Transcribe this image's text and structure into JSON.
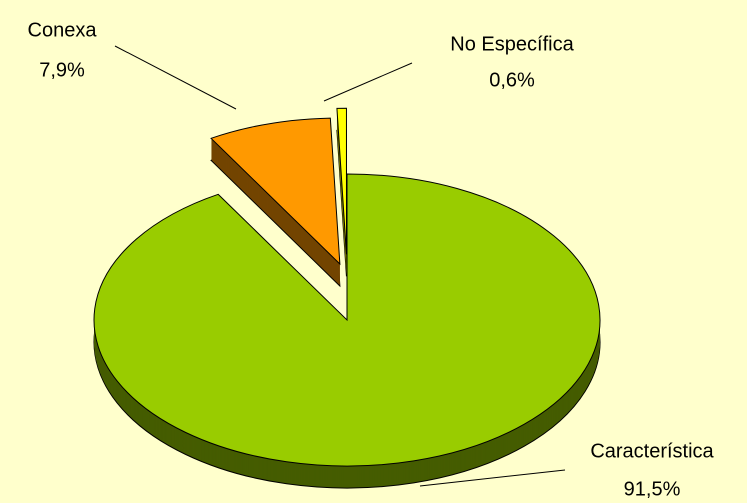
{
  "chart_data": {
    "type": "pie",
    "categories": [
      "Característica",
      "Conexa",
      "No Específica"
    ],
    "values": [
      91.5,
      7.9,
      0.6
    ],
    "value_labels": [
      "91,5%",
      "7,9%",
      "0,6%"
    ],
    "colors": [
      "#99cc00",
      "#ff9900",
      "#ffff00"
    ]
  }
}
